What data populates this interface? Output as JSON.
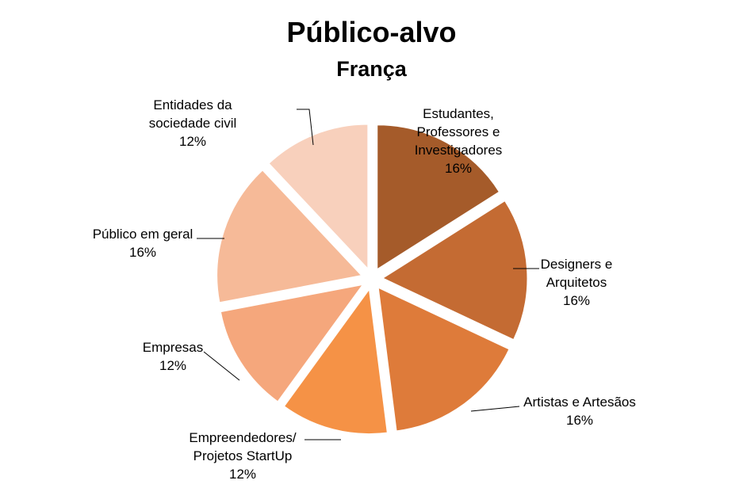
{
  "chart_data": {
    "type": "pie",
    "title": "Público-alvo",
    "subtitle": "França",
    "exploded": true,
    "slices": [
      {
        "label_lines": [
          "Estudantes,",
          "Professores e",
          "Investigadores"
        ],
        "pct_text": "16%",
        "value": 16,
        "color": "#A55B2A"
      },
      {
        "label_lines": [
          "Designers e",
          "Arquitetos"
        ],
        "pct_text": "16%",
        "value": 16,
        "color": "#C46B33"
      },
      {
        "label_lines": [
          "Artistas e Artesãos"
        ],
        "pct_text": "16%",
        "value": 16,
        "color": "#DE7B3A"
      },
      {
        "label_lines": [
          "Empreendedores/",
          "Projetos StartUp"
        ],
        "pct_text": "12%",
        "value": 12,
        "color": "#F59246"
      },
      {
        "label_lines": [
          "Empresas"
        ],
        "pct_text": "12%",
        "value": 12,
        "color": "#F5A77C"
      },
      {
        "label_lines": [
          "Público em geral"
        ],
        "pct_text": "16%",
        "value": 16,
        "color": "#F6BA98"
      },
      {
        "label_lines": [
          "Entidades da",
          "sociedade civil"
        ],
        "pct_text": "12%",
        "value": 12,
        "color": "#F8D0BC"
      }
    ]
  }
}
